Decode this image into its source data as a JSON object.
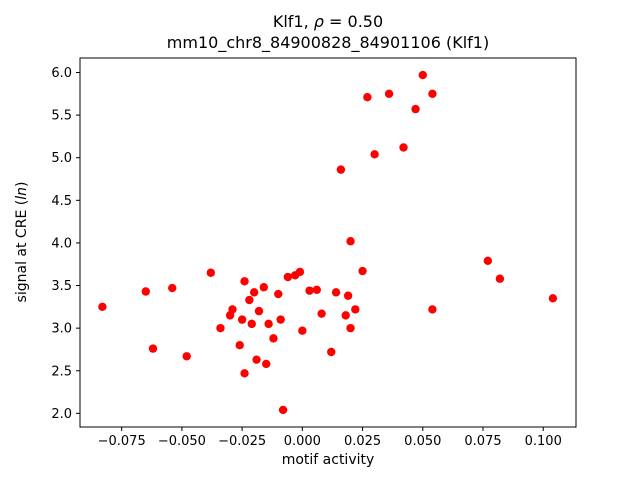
{
  "title": {
    "prefix": "Klf1, ",
    "rho": "ρ",
    "rest": " = 0.50",
    "line2": "mm10_chr8_84900828_84901106 (Klf1)"
  },
  "axes": {
    "xlabel": "motif activity",
    "ylabel_prefix": "signal at CRE (",
    "ylabel_italic": "ln",
    "ylabel_suffix": ")"
  },
  "chart_data": {
    "type": "scatter",
    "title": "Klf1, ρ = 0.50",
    "subtitle": "mm10_chr8_84900828_84901106 (Klf1)",
    "xlabel": "motif activity",
    "ylabel": "signal at CRE (ln)",
    "xlim": [
      -0.0923,
      0.1136
    ],
    "ylim": [
      1.84,
      6.17
    ],
    "xticks": [
      -0.075,
      -0.05,
      -0.025,
      0.0,
      0.025,
      0.05,
      0.075,
      0.1
    ],
    "xtick_labels": [
      "−0.075",
      "−0.050",
      "−0.025",
      "0.000",
      "0.025",
      "0.050",
      "0.075",
      "0.100"
    ],
    "yticks": [
      2.0,
      2.5,
      3.0,
      3.5,
      4.0,
      4.5,
      5.0,
      5.5,
      6.0
    ],
    "ytick_labels": [
      "2.0",
      "2.5",
      "3.0",
      "3.5",
      "4.0",
      "4.5",
      "5.0",
      "5.5",
      "6.0"
    ],
    "grid": false,
    "legend": "none",
    "marker_color": "#ff0000",
    "points": [
      [
        -0.083,
        3.25
      ],
      [
        -0.065,
        3.43
      ],
      [
        -0.062,
        2.76
      ],
      [
        -0.054,
        3.47
      ],
      [
        -0.048,
        2.67
      ],
      [
        -0.038,
        3.65
      ],
      [
        -0.034,
        3.0
      ],
      [
        -0.03,
        3.15
      ],
      [
        -0.029,
        3.22
      ],
      [
        -0.026,
        2.8
      ],
      [
        -0.025,
        3.1
      ],
      [
        -0.024,
        3.55
      ],
      [
        -0.024,
        2.47
      ],
      [
        -0.022,
        3.33
      ],
      [
        -0.021,
        3.05
      ],
      [
        -0.02,
        3.42
      ],
      [
        -0.019,
        2.63
      ],
      [
        -0.018,
        3.2
      ],
      [
        -0.016,
        3.48
      ],
      [
        -0.015,
        2.58
      ],
      [
        -0.014,
        3.05
      ],
      [
        -0.012,
        2.88
      ],
      [
        -0.01,
        3.4
      ],
      [
        -0.009,
        3.1
      ],
      [
        -0.008,
        2.04
      ],
      [
        -0.006,
        3.6
      ],
      [
        -0.003,
        3.62
      ],
      [
        -0.001,
        3.66
      ],
      [
        0.0,
        2.97
      ],
      [
        0.003,
        3.44
      ],
      [
        0.006,
        3.45
      ],
      [
        0.008,
        3.17
      ],
      [
        0.012,
        2.72
      ],
      [
        0.014,
        3.42
      ],
      [
        0.016,
        4.86
      ],
      [
        0.018,
        3.15
      ],
      [
        0.019,
        3.38
      ],
      [
        0.02,
        4.02
      ],
      [
        0.02,
        3.0
      ],
      [
        0.022,
        3.22
      ],
      [
        0.025,
        3.67
      ],
      [
        0.027,
        5.71
      ],
      [
        0.03,
        5.04
      ],
      [
        0.036,
        5.75
      ],
      [
        0.042,
        5.12
      ],
      [
        0.047,
        5.57
      ],
      [
        0.05,
        5.97
      ],
      [
        0.054,
        5.75
      ],
      [
        0.054,
        3.22
      ],
      [
        0.077,
        3.79
      ],
      [
        0.082,
        3.58
      ],
      [
        0.104,
        3.35
      ]
    ]
  }
}
